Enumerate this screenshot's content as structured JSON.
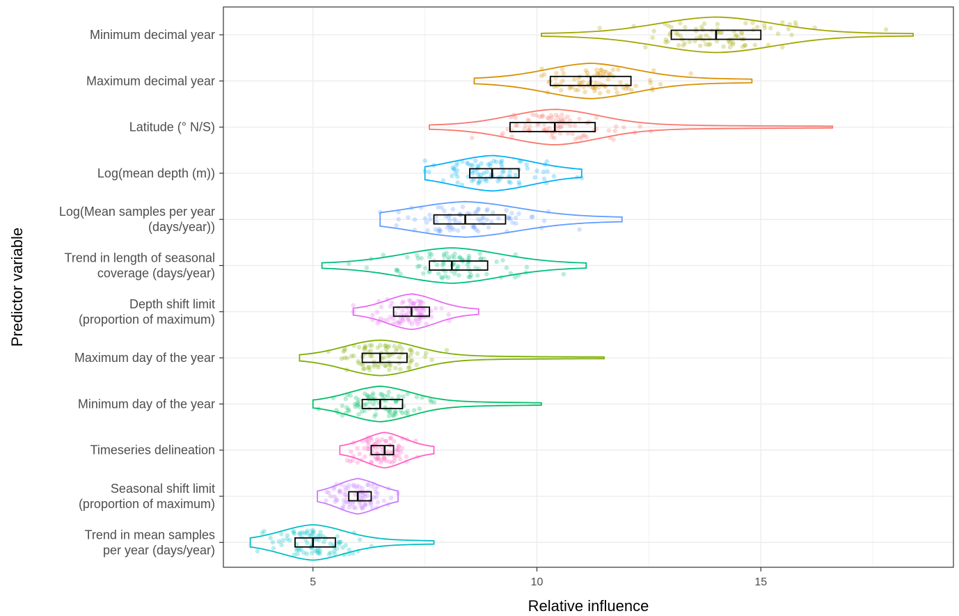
{
  "chart_data": {
    "type": "violin",
    "xlabel": "Relative influence",
    "ylabel": "Predictor variable",
    "xlim": [
      3.0,
      19.3
    ],
    "x_ticks": [
      5,
      10,
      15
    ],
    "x_tick_labels": [
      "5",
      "10",
      "15"
    ],
    "grid": true,
    "background": "#ffffff",
    "series": [
      {
        "label": [
          "Minimum decimal year"
        ],
        "color": "#a3a500",
        "min": 10.1,
        "q1": 13.0,
        "median": 14.0,
        "q3": 15.0,
        "max": 18.4,
        "peak": 14.0,
        "spread": 1.3,
        "width": 0.15
      },
      {
        "label": [
          "Maximum decimal year"
        ],
        "color": "#d89000",
        "min": 8.6,
        "q1": 10.3,
        "median": 11.2,
        "q3": 12.1,
        "max": 14.8,
        "peak": 11.2,
        "spread": 1.0,
        "width": 0.3
      },
      {
        "label": [
          "Latitude (° N/S)"
        ],
        "color": "#f8766d",
        "min": 7.6,
        "q1": 9.4,
        "median": 10.4,
        "q3": 11.3,
        "max": 16.6,
        "peak": 10.4,
        "spread": 1.0,
        "width": 0.24
      },
      {
        "label": [
          "Log(mean depth (m))"
        ],
        "color": "#00b0f6",
        "min": 7.5,
        "q1": 8.5,
        "median": 9.0,
        "q3": 9.6,
        "max": 11.0,
        "peak": 9.0,
        "spread": 0.9,
        "width": 0.36
      },
      {
        "label": [
          "Log(Mean samples per year",
          "(days/year))"
        ],
        "color": "#619cff",
        "min": 6.5,
        "q1": 7.7,
        "median": 8.4,
        "q3": 9.3,
        "max": 11.9,
        "peak": 8.4,
        "spread": 1.2,
        "width": 0.3
      },
      {
        "label": [
          "Trend in length of seasonal",
          "coverage (days/year)"
        ],
        "color": "#00bf7d",
        "min": 5.2,
        "q1": 7.6,
        "median": 8.1,
        "q3": 8.9,
        "max": 11.1,
        "peak": 8.1,
        "spread": 1.1,
        "width": 0.3
      },
      {
        "label": [
          "Depth shift limit",
          "(proportion of maximum)"
        ],
        "color": "#e76bf3",
        "min": 5.9,
        "q1": 6.8,
        "median": 7.2,
        "q3": 7.6,
        "max": 8.7,
        "peak": 7.2,
        "spread": 0.55,
        "width": 0.33
      },
      {
        "label": [
          "Maximum day of the year"
        ],
        "color": "#7cae00",
        "min": 4.7,
        "q1": 6.1,
        "median": 6.5,
        "q3": 7.1,
        "max": 11.5,
        "peak": 6.5,
        "spread": 0.8,
        "width": 0.2
      },
      {
        "label": [
          "Minimum day of the year"
        ],
        "color": "#00be67",
        "min": 5.0,
        "q1": 6.1,
        "median": 6.5,
        "q3": 7.0,
        "max": 10.1,
        "peak": 6.5,
        "spread": 0.7,
        "width": 0.3
      },
      {
        "label": [
          "Timeseries delineation"
        ],
        "color": "#ff61c3",
        "min": 5.6,
        "q1": 6.3,
        "median": 6.6,
        "q3": 6.8,
        "max": 7.7,
        "peak": 6.6,
        "spread": 0.45,
        "width": 0.4
      },
      {
        "label": [
          "Seasonal shift limit",
          "(proportion of maximum)"
        ],
        "color": "#c77cff",
        "min": 5.1,
        "q1": 5.8,
        "median": 6.0,
        "q3": 6.3,
        "max": 6.9,
        "peak": 6.0,
        "spread": 0.45,
        "width": 0.45
      },
      {
        "label": [
          "Trend in mean samples",
          "per year (days/year)"
        ],
        "color": "#00bfc4",
        "min": 3.6,
        "q1": 4.6,
        "median": 5.0,
        "q3": 5.5,
        "max": 7.7,
        "peak": 5.0,
        "spread": 0.7,
        "width": 0.3
      }
    ]
  }
}
